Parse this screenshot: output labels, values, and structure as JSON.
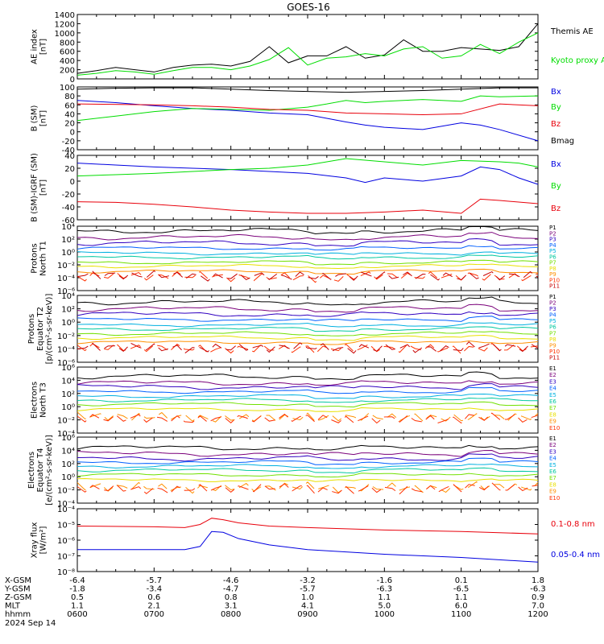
{
  "title": "GOES-16",
  "colors": {
    "black": "#000000",
    "red": "#e8000b",
    "green": "#00dd00",
    "blue": "#0000e0",
    "p1": "#000000",
    "p2": "#7a007a",
    "p3": "#3000c0",
    "p4": "#0060ff",
    "p5": "#00b0e0",
    "p6": "#00c8a0",
    "p7": "#70e000",
    "p8": "#e8e000",
    "p9": "#ff9000",
    "p10": "#ff3000",
    "p11": "#c80000"
  },
  "chart_data": [
    {
      "type": "line",
      "panel": "ae",
      "ylabel": [
        "AE index",
        "[nT]"
      ],
      "ylim": [
        0,
        1400
      ],
      "yticks": [
        "0",
        "200",
        "400",
        "600",
        "800",
        "1000",
        "1200",
        "1400"
      ],
      "ytick_values": [
        0,
        200,
        400,
        600,
        800,
        1000,
        1200,
        1400
      ],
      "series": [
        {
          "name": "Themis AE",
          "color": "black",
          "x": [
            6.0,
            6.25,
            6.5,
            6.75,
            7.0,
            7.25,
            7.5,
            7.75,
            8.0,
            8.25,
            8.5,
            8.75,
            9.0,
            9.25,
            9.5,
            9.75,
            10.0,
            10.25,
            10.5,
            10.75,
            11.0,
            11.25,
            11.5,
            11.75,
            12.0
          ],
          "values": [
            120,
            180,
            250,
            200,
            150,
            250,
            300,
            320,
            280,
            380,
            700,
            350,
            500,
            500,
            700,
            450,
            520,
            850,
            600,
            600,
            680,
            650,
            620,
            700,
            1200
          ]
        },
        {
          "name": "Kyoto proxy AE",
          "color": "green",
          "x": [
            6.0,
            6.25,
            6.5,
            6.75,
            7.0,
            7.25,
            7.5,
            7.75,
            8.0,
            8.25,
            8.5,
            8.75,
            9.0,
            9.25,
            9.5,
            9.75,
            10.0,
            10.25,
            10.5,
            10.75,
            11.0,
            11.25,
            11.5,
            11.75,
            12.0
          ],
          "values": [
            80,
            120,
            180,
            150,
            100,
            180,
            250,
            250,
            200,
            280,
            420,
            680,
            300,
            450,
            480,
            550,
            500,
            650,
            700,
            450,
            500,
            750,
            550,
            800,
            1000
          ]
        }
      ]
    },
    {
      "type": "line",
      "panel": "bsm",
      "ylabel": [
        "B (SM)",
        "[nT]"
      ],
      "ylim": [
        -40,
        100
      ],
      "yticks": [
        "-40",
        "-20",
        "0",
        "20",
        "40",
        "60",
        "80",
        "100"
      ],
      "ytick_values": [
        -40,
        -20,
        0,
        20,
        40,
        60,
        80,
        100
      ],
      "series": [
        {
          "name": "Bx",
          "color": "blue",
          "x": [
            6.0,
            6.5,
            7.0,
            7.5,
            8.0,
            8.5,
            9.0,
            9.25,
            9.5,
            9.75,
            10.0,
            10.5,
            11.0,
            11.25,
            11.5,
            12.0
          ],
          "values": [
            70,
            65,
            58,
            52,
            48,
            42,
            38,
            30,
            22,
            15,
            10,
            5,
            20,
            15,
            5,
            -20
          ]
        },
        {
          "name": "By",
          "color": "green",
          "x": [
            6.0,
            6.5,
            7.0,
            7.5,
            8.0,
            8.5,
            9.0,
            9.25,
            9.5,
            9.75,
            10.0,
            10.5,
            11.0,
            11.25,
            11.5,
            12.0
          ],
          "values": [
            25,
            35,
            45,
            52,
            50,
            48,
            55,
            62,
            70,
            65,
            68,
            72,
            68,
            80,
            78,
            80
          ]
        },
        {
          "name": "Bz",
          "color": "red",
          "x": [
            6.0,
            7.0,
            7.5,
            8.0,
            8.5,
            9.0,
            9.5,
            10.0,
            10.5,
            11.0,
            11.5,
            12.0
          ],
          "values": [
            62,
            60,
            58,
            55,
            50,
            48,
            42,
            40,
            38,
            40,
            62,
            58
          ]
        },
        {
          "name": "Bmag",
          "color": "black",
          "x": [
            6.0,
            6.5,
            7.0,
            7.5,
            8.0,
            8.5,
            9.0,
            9.5,
            10.0,
            10.5,
            11.0,
            11.5,
            12.0
          ],
          "values": [
            95,
            97,
            98,
            98,
            95,
            92,
            90,
            88,
            90,
            92,
            95,
            98,
            98
          ]
        }
      ]
    },
    {
      "type": "line",
      "panel": "bigrf",
      "ylabel": [
        "B (SM)-IGRF (SM)",
        "[nT]"
      ],
      "ylim": [
        -60,
        40
      ],
      "yticks": [
        "-60",
        "-40",
        "-20",
        "0",
        "20",
        "40"
      ],
      "ytick_values": [
        -60,
        -40,
        -20,
        0,
        20,
        40
      ],
      "series": [
        {
          "name": "Bx",
          "color": "blue",
          "x": [
            6.0,
            6.5,
            7.0,
            7.5,
            8.0,
            8.5,
            9.0,
            9.5,
            9.75,
            10.0,
            10.5,
            11.0,
            11.25,
            11.5,
            11.75,
            12.0
          ],
          "values": [
            28,
            25,
            22,
            20,
            18,
            15,
            12,
            5,
            -2,
            5,
            0,
            8,
            22,
            18,
            5,
            -5
          ]
        },
        {
          "name": "By",
          "color": "green",
          "x": [
            6.0,
            6.5,
            7.0,
            7.5,
            8.0,
            8.5,
            9.0,
            9.5,
            10.0,
            10.5,
            11.0,
            11.5,
            11.75,
            12.0
          ],
          "values": [
            8,
            10,
            12,
            15,
            18,
            20,
            25,
            35,
            30,
            25,
            32,
            30,
            28,
            22
          ]
        },
        {
          "name": "Bz",
          "color": "red",
          "x": [
            6.0,
            6.5,
            7.0,
            7.5,
            8.0,
            8.5,
            9.0,
            9.5,
            10.0,
            10.5,
            11.0,
            11.25,
            11.5,
            12.0
          ],
          "values": [
            -32,
            -33,
            -36,
            -40,
            -45,
            -48,
            -50,
            -50,
            -48,
            -45,
            -50,
            -28,
            -30,
            -35
          ]
        }
      ]
    },
    {
      "type": "line",
      "panel": "pn",
      "log": true,
      "ylabel": [
        "Protons",
        "North T1"
      ],
      "ylim_exp": [
        -6,
        4
      ],
      "yticks": [
        "10⁻⁶",
        "10⁻⁴",
        "10⁻²",
        "10⁰",
        "10²",
        "10⁴"
      ],
      "ytick_values": [
        -6,
        -4,
        -2,
        0,
        2,
        4
      ],
      "channels": [
        "P1",
        "P2",
        "P3",
        "P4",
        "P5",
        "P6",
        "P7",
        "P8",
        "P9",
        "P10",
        "P11"
      ],
      "levels": [
        3.3,
        2.3,
        1.4,
        0.6,
        -0.2,
        -0.8,
        -1.6,
        -2.2,
        -3.0,
        -3.8,
        -3.7
      ]
    },
    {
      "type": "line",
      "panel": "pe",
      "log": true,
      "ylabel": [
        "Protons",
        "Equator T2",
        "[p/(cm²-s-sr-keV)]"
      ],
      "ylim_exp": [
        -6,
        4
      ],
      "yticks": [
        "10⁻⁶",
        "10⁻⁴",
        "10⁻²",
        "10⁰",
        "10²",
        "10⁴"
      ],
      "ytick_values": [
        -6,
        -4,
        -2,
        0,
        2,
        4
      ],
      "channels": [
        "P1",
        "P2",
        "P3",
        "P4",
        "P5",
        "P6",
        "P7",
        "P8",
        "P9",
        "P10",
        "P11"
      ],
      "levels": [
        3.0,
        2.0,
        1.2,
        0.4,
        -0.4,
        -1.0,
        -1.7,
        -2.3,
        -3.0,
        -3.9,
        -3.8
      ]
    },
    {
      "type": "line",
      "panel": "en",
      "log": true,
      "ylabel": [
        "Electrons",
        "North T3"
      ],
      "ylim_exp": [
        -4,
        6
      ],
      "yticks": [
        "10⁻⁴",
        "10⁻²",
        "10⁰",
        "10²",
        "10⁴",
        "10⁶"
      ],
      "ytick_values": [
        -4,
        -2,
        0,
        2,
        4,
        6
      ],
      "channels": [
        "E1",
        "E2",
        "E3",
        "E4",
        "E5",
        "E6",
        "E7",
        "E8",
        "E9",
        "E10"
      ],
      "levels": [
        4.6,
        3.6,
        3.0,
        2.3,
        1.6,
        1.0,
        0.4,
        -0.4,
        -1.6,
        -1.8
      ]
    },
    {
      "type": "line",
      "panel": "ee",
      "log": true,
      "ylabel": [
        "Electrons",
        "Equator T4",
        "[e/(cm²-s-sr-keV)]"
      ],
      "ylim_exp": [
        -4,
        6
      ],
      "yticks": [
        "10⁻⁴",
        "10⁻²",
        "10⁰",
        "10²",
        "10⁴",
        "10⁶"
      ],
      "ytick_values": [
        -4,
        -2,
        0,
        2,
        4,
        6
      ],
      "channels": [
        "E1",
        "E2",
        "E3",
        "E4",
        "E5",
        "E6",
        "E7",
        "E8",
        "E9",
        "E10"
      ],
      "levels": [
        4.4,
        3.5,
        2.8,
        2.2,
        1.6,
        1.0,
        0.3,
        -0.5,
        -1.6,
        -1.8
      ]
    },
    {
      "type": "line",
      "panel": "xray",
      "log": true,
      "ylabel": [
        "Xray flux",
        "[W/m²]"
      ],
      "ylim_exp": [
        -8,
        -4
      ],
      "yticks": [
        "10⁻⁸",
        "10⁻⁷",
        "10⁻⁶",
        "10⁻⁵",
        "10⁻⁴"
      ],
      "ytick_values": [
        -8,
        -7,
        -6,
        -5,
        -4
      ],
      "series": [
        {
          "name": "0.1-0.8 nm",
          "color": "red",
          "x": [
            6.0,
            7.0,
            7.4,
            7.6,
            7.75,
            7.9,
            8.1,
            8.5,
            9.0,
            10.0,
            11.0,
            12.0
          ],
          "values": [
            -5.1,
            -5.15,
            -5.2,
            -5.0,
            -4.6,
            -4.7,
            -4.9,
            -5.1,
            -5.2,
            -5.35,
            -5.45,
            -5.6
          ]
        },
        {
          "name": "0.05-0.4 nm",
          "color": "blue",
          "x": [
            6.0,
            7.0,
            7.4,
            7.6,
            7.75,
            7.9,
            8.1,
            8.5,
            9.0,
            10.0,
            11.0,
            12.0
          ],
          "values": [
            -6.6,
            -6.6,
            -6.6,
            -6.4,
            -5.45,
            -5.5,
            -5.9,
            -6.3,
            -6.6,
            -6.9,
            -7.1,
            -7.4
          ]
        }
      ]
    }
  ],
  "xaxis": {
    "rows": [
      {
        "label": "X-GSM",
        "values": [
          "-6.4",
          "-5.7",
          "-4.6",
          "-3.2",
          "-1.6",
          "0.1",
          "1.8"
        ]
      },
      {
        "label": "Y-GSM",
        "values": [
          "-1.8",
          "-3.4",
          "-4.7",
          "-5.7",
          "-6.3",
          "-6.5",
          "-6.3"
        ]
      },
      {
        "label": "Z-GSM",
        "values": [
          "0.5",
          "0.6",
          "0.8",
          "1.0",
          "1.1",
          "1.1",
          "0.9"
        ]
      },
      {
        "label": "MLT",
        "values": [
          "1.1",
          "2.1",
          "3.1",
          "4.1",
          "5.0",
          "6.0",
          "7.0"
        ]
      },
      {
        "label": "hhmm",
        "values": [
          "0600",
          "0700",
          "0800",
          "0900",
          "1000",
          "1100",
          "1200"
        ]
      }
    ],
    "date": "2024 Sep 14",
    "tick_hours": [
      6,
      7,
      8,
      9,
      10,
      11,
      12
    ],
    "range": [
      6,
      12
    ]
  }
}
